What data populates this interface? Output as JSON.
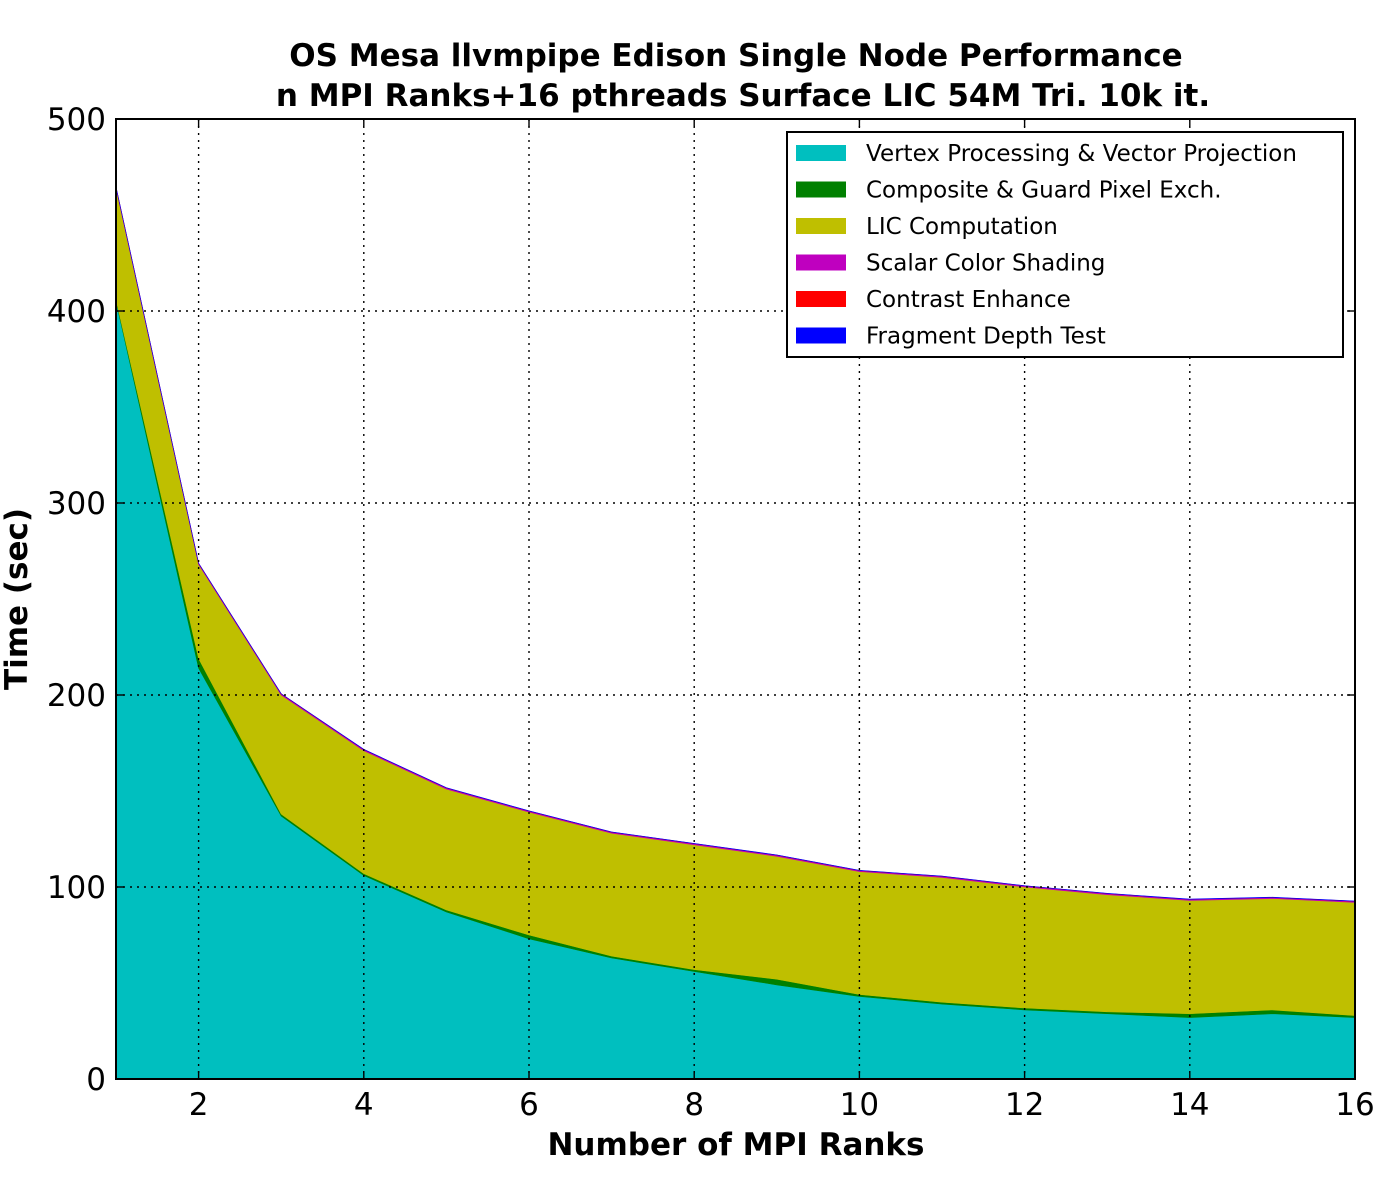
{
  "chart_data": {
    "type": "area",
    "stacked": true,
    "title": "OS Mesa llvmpipe Edison Single Node Performance",
    "subtitle": "n MPI Ranks+16 pthreads Surface LIC 54M Tri. 10k it.",
    "xlabel": "Number of MPI Ranks",
    "ylabel": "Time (sec)",
    "xlim": [
      1,
      16
    ],
    "ylim": [
      0,
      500
    ],
    "grid": true,
    "legend_position": "top-right",
    "x": [
      1,
      2,
      3,
      4,
      5,
      6,
      7,
      8,
      9,
      10,
      11,
      12,
      13,
      14,
      15,
      16
    ],
    "xticks": [
      "2",
      "4",
      "6",
      "8",
      "10",
      "12",
      "14",
      "16"
    ],
    "xtick_values": [
      2,
      4,
      6,
      8,
      10,
      12,
      14,
      16
    ],
    "yticks": [
      "0",
      "100",
      "200",
      "300",
      "400",
      "500"
    ],
    "ytick_values": [
      0,
      100,
      200,
      300,
      400,
      500
    ],
    "series": [
      {
        "name": "Vertex Processing & Vector Projection",
        "color": "#00bfbf",
        "values": [
          405,
          214,
          137,
          106,
          87,
          73,
          63,
          56,
          49,
          43,
          39,
          36,
          34,
          32,
          34,
          32
        ]
      },
      {
        "name": "Composite & Guard Pixel Exch.",
        "color": "#008000",
        "values": [
          1,
          5,
          1,
          1,
          1,
          2,
          1,
          1,
          3,
          1,
          1,
          1,
          1,
          2,
          2,
          1
        ]
      },
      {
        "name": "LIC Computation",
        "color": "#bfbf00",
        "values": [
          58,
          49,
          62,
          64,
          63,
          64,
          64,
          65,
          64,
          64,
          65,
          63,
          61,
          59,
          58,
          59
        ]
      },
      {
        "name": "Scalar Color Shading",
        "color": "#bf00bf",
        "values": [
          0.5,
          0.5,
          0.5,
          0.5,
          0.5,
          0.5,
          0.5,
          0.5,
          0.5,
          0.5,
          0.5,
          0.5,
          0.5,
          0.5,
          0.5,
          0.5
        ]
      },
      {
        "name": "Contrast Enhance",
        "color": "#ff0000",
        "values": [
          0.1,
          0.1,
          0.1,
          0.1,
          0.1,
          0.1,
          0.1,
          0.1,
          0.1,
          0.1,
          0.1,
          0.1,
          0.1,
          0.1,
          0.1,
          0.1
        ]
      },
      {
        "name": "Fragment Depth Test",
        "color": "#0000ff",
        "values": [
          0.1,
          0.1,
          0.1,
          0.1,
          0.1,
          0.1,
          0.1,
          0.1,
          0.1,
          0.1,
          0.1,
          0.1,
          0.1,
          0.1,
          0.1,
          0.1
        ]
      }
    ]
  }
}
